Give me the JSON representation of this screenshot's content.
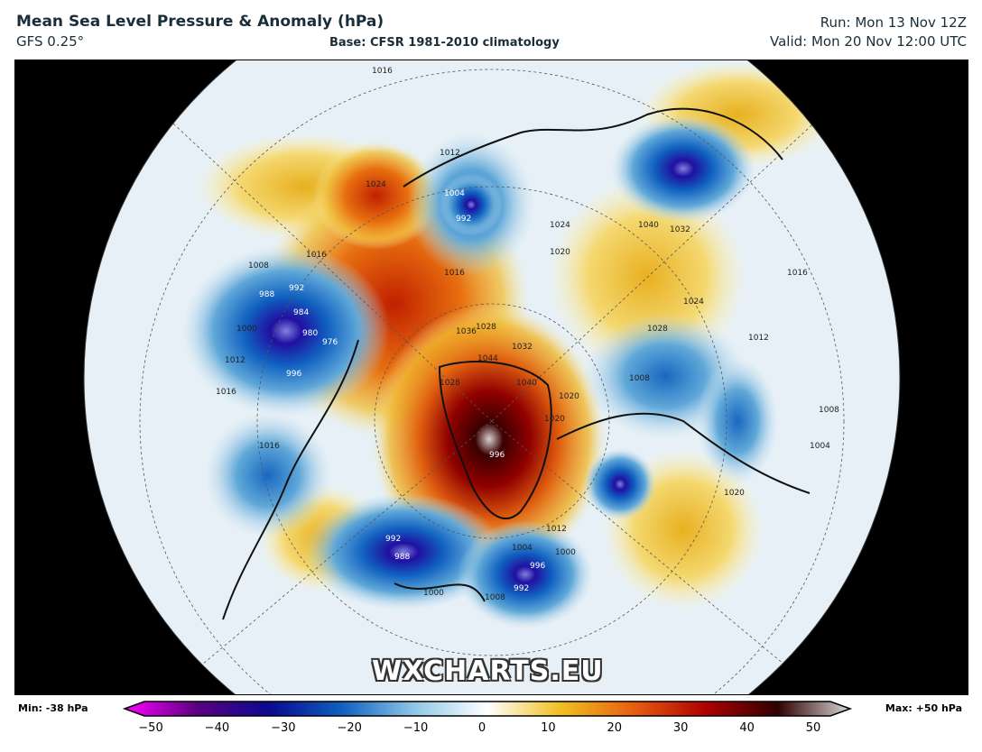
{
  "header": {
    "title": "Mean Sea Level Pressure & Anomaly (hPa)",
    "model": "GFS 0.25°",
    "base": "Base: CFSR 1981-2010 climatology",
    "run": "Run: Mon 13 Nov 12Z",
    "valid": "Valid: Mon 20 Nov 12:00 UTC"
  },
  "watermark": "WXCHARTS.EU",
  "colorbar": {
    "min_label": "Min: -38 hPa",
    "max_label": "Max: +50 hPa",
    "ticks": [
      "−50",
      "−40",
      "−30",
      "−20",
      "−10",
      "0",
      "10",
      "20",
      "30",
      "40",
      "50"
    ],
    "colors": [
      "#ff00ff",
      "#5a0080",
      "#0a0a90",
      "#1060c0",
      "#90c8e8",
      "#ffffff",
      "#f0c020",
      "#e86010",
      "#b00000",
      "#300000",
      "#d8d8d8"
    ]
  },
  "isobar_labels": [
    "1016",
    "1012",
    "1024",
    "1016",
    "1008",
    "988",
    "992",
    "984",
    "980",
    "976",
    "1000",
    "1012",
    "1016",
    "996",
    "1004",
    "992",
    "1016",
    "1024",
    "1020",
    "1040",
    "1032",
    "1028",
    "1036",
    "1044",
    "1032",
    "1028",
    "1040",
    "1020",
    "1020",
    "996",
    "1008",
    "1012",
    "1016",
    "1024",
    "1028",
    "1020",
    "1016",
    "992",
    "988",
    "1000",
    "1004",
    "1000",
    "996",
    "992",
    "1008",
    "1012",
    "1004",
    "1008"
  ]
}
